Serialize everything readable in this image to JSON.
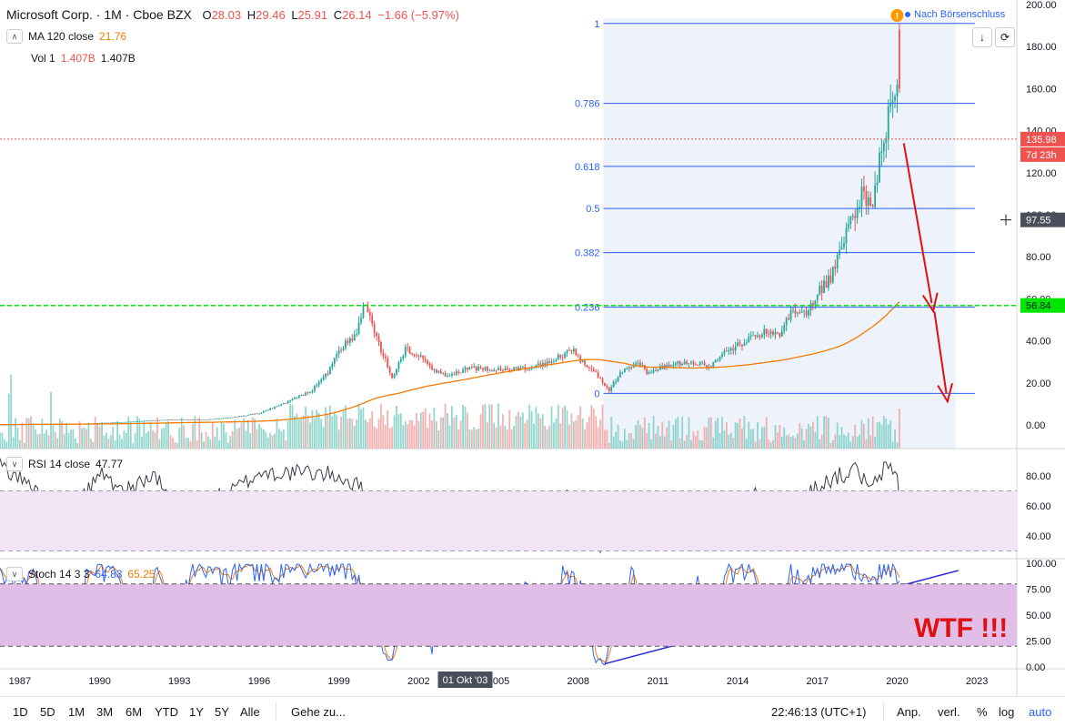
{
  "header": {
    "symbol": "Microsoft Corp. · 1M · Cboe BZX",
    "open_label": "O",
    "open": "28.03",
    "high_label": "H",
    "high": "29.46",
    "low_label": "L",
    "low": "25.91",
    "close_label": "C",
    "close": "26.14",
    "change": "−1.66 (−5.97%)"
  },
  "indicators": {
    "ma": {
      "name": "MA 120 close",
      "value": "21.76"
    },
    "vol": {
      "name": "Vol 1",
      "value_red": "1.407B",
      "value": "1.407B"
    },
    "rsi": {
      "name": "RSI 14 close",
      "value": "47.77"
    },
    "stoch": {
      "name": "Stoch 14 3 3",
      "k": "64.83",
      "d": "65.25"
    }
  },
  "note": "Nach Börsenschluss",
  "annotation": "WTF !!!",
  "price_tags": {
    "last": "135.98",
    "countdown": "7d 23h",
    "crosshair": "97.55",
    "green_line": "56.84"
  },
  "x_axis_labels": [
    "1987",
    "1990",
    "1993",
    "1996",
    "1999",
    "2002",
    "2005",
    "2008",
    "2011",
    "2014",
    "2017",
    "2020",
    "2023"
  ],
  "crosshair_date": "01 Okt '03",
  "price_axis": {
    "ticks": [
      "200.00",
      "180.00",
      "160.00",
      "140.00",
      "120.00",
      "100.00",
      "80.00",
      "60.00",
      "40.00",
      "20.00",
      "0.00"
    ]
  },
  "rsi_axis": {
    "ticks": [
      "80.00",
      "60.00",
      "40.00"
    ]
  },
  "stoch_axis": {
    "ticks": [
      "100.00",
      "75.00",
      "50.00",
      "25.00",
      "0.00"
    ]
  },
  "bottom_bar": {
    "ranges": [
      "1D",
      "5D",
      "1M",
      "3M",
      "6M",
      "YTD",
      "1Y",
      "5Y",
      "Alle"
    ],
    "goto": "Gehe zu...",
    "clock": "22:46:13 (UTC+1)",
    "adj": "Anp.",
    "ext": "verl.",
    "pct": "%",
    "log": "log",
    "auto": "auto"
  },
  "colors": {
    "up": "#26a69a",
    "down": "#ef5350",
    "ma": "#f57c00",
    "fib": "#2962ff",
    "green_line": "#00e600",
    "rsi_band": "#f3e5f5",
    "stoch_band": "#e1bee7",
    "trend": "#2b2bd9",
    "arrow": "#e01010"
  },
  "chart_data": [
    {
      "type": "candlestick",
      "title": "Microsoft Corp. · 1M · Cboe BZX",
      "ylim": [
        -10,
        200
      ],
      "x_range": [
        1986.25,
        2024.5
      ],
      "x_ticks": [
        1987,
        1990,
        1993,
        1996,
        1999,
        2002,
        2005,
        2008,
        2011,
        2014,
        2017,
        2020,
        2023
      ],
      "price_anchors": [
        [
          1986.25,
          0.1
        ],
        [
          1987.0,
          0.3
        ],
        [
          1988.0,
          0.4
        ],
        [
          1989.0,
          0.5
        ],
        [
          1990.0,
          0.9
        ],
        [
          1991.0,
          1.4
        ],
        [
          1992.0,
          2.2
        ],
        [
          1993.0,
          2.6
        ],
        [
          1994.0,
          2.5
        ],
        [
          1995.0,
          3.6
        ],
        [
          1996.0,
          5.6
        ],
        [
          1997.0,
          10.5
        ],
        [
          1998.0,
          16.5
        ],
        [
          1998.6,
          25
        ],
        [
          1999.0,
          36
        ],
        [
          1999.6,
          42
        ],
        [
          1999.95,
          58
        ],
        [
          2000.3,
          45
        ],
        [
          2000.8,
          29
        ],
        [
          2001.0,
          22
        ],
        [
          2001.5,
          36
        ],
        [
          2002.0,
          33
        ],
        [
          2002.5,
          26
        ],
        [
          2003.0,
          24
        ],
        [
          2004.0,
          27
        ],
        [
          2005.0,
          26
        ],
        [
          2006.0,
          27
        ],
        [
          2006.8,
          29
        ],
        [
          2007.8,
          36
        ],
        [
          2008.2,
          29
        ],
        [
          2008.6,
          26
        ],
        [
          2009.15,
          16
        ],
        [
          2009.6,
          25
        ],
        [
          2010.3,
          30
        ],
        [
          2010.6,
          24
        ],
        [
          2011.0,
          27
        ],
        [
          2012.0,
          30
        ],
        [
          2013.0,
          28
        ],
        [
          2013.5,
          34
        ],
        [
          2014.0,
          38
        ],
        [
          2015.0,
          44
        ],
        [
          2015.6,
          43
        ],
        [
          2016.0,
          54
        ],
        [
          2016.6,
          52
        ],
        [
          2017.0,
          63
        ],
        [
          2017.5,
          70
        ],
        [
          2018.0,
          88
        ],
        [
          2018.7,
          112
        ],
        [
          2019.0,
          102
        ],
        [
          2019.5,
          138
        ],
        [
          2019.95,
          160
        ],
        [
          2020.05,
          172
        ],
        [
          2020.15,
          136
        ]
      ],
      "last_bar": {
        "open": 28.03,
        "high": 29.46,
        "low": 25.91,
        "close": 26.14,
        "change": -1.66,
        "change_pct": -5.97
      },
      "ma120": {
        "name": "MA 120 close",
        "last": 21.76
      },
      "horizontal_lines": {
        "last_price": 135.98,
        "green_level": 56.84,
        "crosshair": 97.55
      },
      "fib_levels": [
        {
          "label": "1",
          "price": 191
        },
        {
          "label": "0.786",
          "price": 153
        },
        {
          "label": "0.618",
          "price": 123
        },
        {
          "label": "0.5",
          "price": 103
        },
        {
          "label": "0.382",
          "price": 82
        },
        {
          "label": "0.236",
          "price": 56
        },
        {
          "label": "0",
          "price": 15
        }
      ],
      "arrows": [
        {
          "from": [
            2020.25,
            134
          ],
          "to": [
            2021.3,
            58
          ]
        },
        {
          "from": [
            2021.4,
            54
          ],
          "to": [
            2021.85,
            15
          ]
        }
      ]
    },
    {
      "type": "line",
      "title": "RSI 14 close",
      "ylim": [
        24,
        100
      ],
      "bands": [
        30,
        70
      ],
      "last": 47.77,
      "anchors": [
        [
          1986.25,
          88
        ],
        [
          1987.5,
          72
        ],
        [
          1988.3,
          55
        ],
        [
          1989.0,
          55
        ],
        [
          1990.0,
          82
        ],
        [
          1991.0,
          70
        ],
        [
          1992.0,
          80
        ],
        [
          1993.0,
          58
        ],
        [
          1994.0,
          62
        ],
        [
          1995.0,
          70
        ],
        [
          1996.0,
          82
        ],
        [
          1997.0,
          82
        ],
        [
          1998.0,
          82
        ],
        [
          1999.0,
          80
        ],
        [
          2000.0,
          70
        ],
        [
          2000.5,
          48
        ],
        [
          2001.5,
          55
        ],
        [
          2002.5,
          45
        ],
        [
          2003.5,
          52
        ],
        [
          2004.5,
          48
        ],
        [
          2005.5,
          50
        ],
        [
          2006.5,
          60
        ],
        [
          2007.6,
          68
        ],
        [
          2008.0,
          50
        ],
        [
          2008.6,
          40
        ],
        [
          2009.1,
          29
        ],
        [
          2009.6,
          55
        ],
        [
          2010.5,
          62
        ],
        [
          2011.5,
          55
        ],
        [
          2012.5,
          60
        ],
        [
          2013.5,
          58
        ],
        [
          2014.5,
          70
        ],
        [
          2015.5,
          60
        ],
        [
          2016.5,
          68
        ],
        [
          2017.5,
          78
        ],
        [
          2018.5,
          84
        ],
        [
          2019.0,
          70
        ],
        [
          2019.5,
          84
        ],
        [
          2019.95,
          85
        ],
        [
          2020.15,
          57
        ]
      ]
    },
    {
      "type": "line",
      "title": "Stoch 14 3 3",
      "ylim": [
        -4,
        104
      ],
      "bands": [
        20,
        80
      ],
      "k_last": 64.83,
      "d_last": 65.25,
      "anchors": [
        [
          1986.25,
          88
        ],
        [
          1987.0,
          80
        ],
        [
          1987.5,
          95
        ],
        [
          1988.0,
          40
        ],
        [
          1988.5,
          38
        ],
        [
          1989.5,
          85
        ],
        [
          1990.5,
          95
        ],
        [
          1991.3,
          40
        ],
        [
          1992.0,
          90
        ],
        [
          1993.0,
          60
        ],
        [
          1993.5,
          95
        ],
        [
          1994.5,
          85
        ],
        [
          1995.5,
          95
        ],
        [
          1996.5,
          90
        ],
        [
          1997.5,
          95
        ],
        [
          1998.5,
          95
        ],
        [
          1999.5,
          95
        ],
        [
          2000.0,
          70
        ],
        [
          2000.5,
          20
        ],
        [
          2001.0,
          15
        ],
        [
          2001.5,
          70
        ],
        [
          2002.5,
          20
        ],
        [
          2003.0,
          65
        ],
        [
          2003.8,
          40
        ],
        [
          2004.5,
          65
        ],
        [
          2005.3,
          18
        ],
        [
          2006.0,
          80
        ],
        [
          2006.5,
          20
        ],
        [
          2007.5,
          95
        ],
        [
          2008.2,
          70
        ],
        [
          2008.5,
          15
        ],
        [
          2009.0,
          5
        ],
        [
          2009.5,
          40
        ],
        [
          2010.0,
          90
        ],
        [
          2010.6,
          30
        ],
        [
          2011.2,
          60
        ],
        [
          2011.8,
          25
        ],
        [
          2012.5,
          90
        ],
        [
          2013.0,
          30
        ],
        [
          2013.6,
          90
        ],
        [
          2014.5,
          95
        ],
        [
          2015.0,
          60
        ],
        [
          2015.5,
          50
        ],
        [
          2016.0,
          90
        ],
        [
          2016.5,
          80
        ],
        [
          2017.0,
          95
        ],
        [
          2018.0,
          95
        ],
        [
          2018.5,
          95
        ],
        [
          2019.0,
          85
        ],
        [
          2019.5,
          95
        ],
        [
          2019.95,
          95
        ],
        [
          2020.15,
          65
        ]
      ],
      "trendline": {
        "from": [
          2009.0,
          3
        ],
        "to": [
          2022.3,
          93
        ]
      }
    }
  ]
}
